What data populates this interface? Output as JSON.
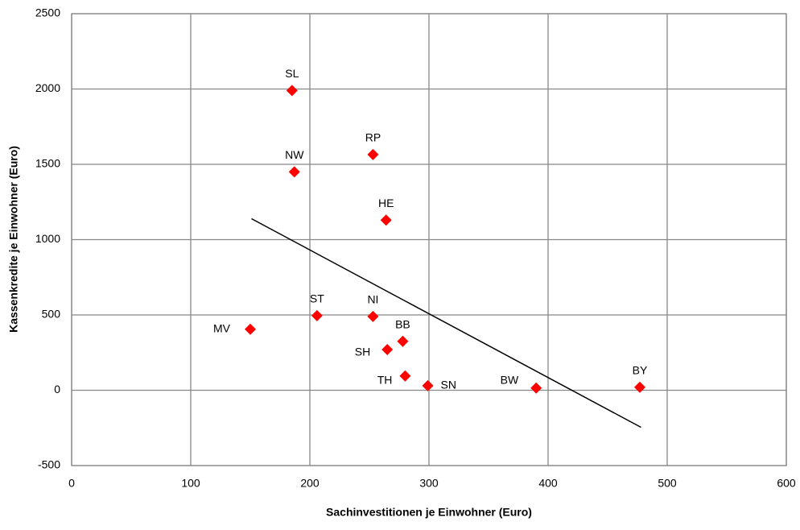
{
  "chart_data": {
    "type": "scatter",
    "x_label": "Sachinvestitionen je Einwohner (Euro)",
    "y_label": "Kassenkredite je Einwohner (Euro)",
    "labels": [
      "SL",
      "RP",
      "NW",
      "HE",
      "ST",
      "NI",
      "MV",
      "BB",
      "SH",
      "TH",
      "SN",
      "BW",
      "BY"
    ],
    "x": [
      185,
      253,
      187,
      264,
      206,
      253,
      150,
      278,
      265,
      280,
      299,
      390,
      477
    ],
    "y": [
      1990,
      1565,
      1450,
      1130,
      495,
      490,
      405,
      325,
      270,
      95,
      30,
      15,
      20
    ],
    "color": "#ff0000",
    "trendline": {
      "x": [
        151,
        478
      ],
      "y": [
        1139,
        -246
      ],
      "color": "#000000"
    },
    "xlim": [
      0,
      600
    ],
    "xticks": [
      0,
      100,
      200,
      300,
      400,
      500,
      600
    ],
    "ylim": [
      -500,
      2500
    ],
    "yticks": [
      -500,
      0,
      500,
      1000,
      1500,
      2000,
      2500
    ],
    "grid": true
  }
}
